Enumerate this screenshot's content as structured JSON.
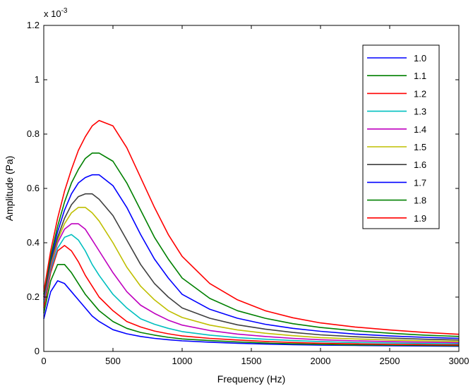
{
  "chart_data": {
    "type": "line",
    "title": "",
    "xlabel": "Frequency (Hz)",
    "ylabel": "Amplitude (Pa)",
    "y_exponent_label": "x 10",
    "y_exponent_power": "-3",
    "xlim": [
      0,
      3000
    ],
    "ylim": [
      0,
      1.2
    ],
    "x_ticks": [
      0,
      500,
      1000,
      1500,
      2000,
      2500,
      3000
    ],
    "x_tick_labels": [
      "0",
      "500",
      "1000",
      "1500",
      "2000",
      "2500",
      "3000"
    ],
    "y_ticks": [
      0,
      0.2,
      0.4,
      0.6,
      0.8,
      1.0,
      1.2
    ],
    "y_tick_labels": [
      "0",
      "0.2",
      "0.4",
      "0.6",
      "0.8",
      "1",
      "1.2"
    ],
    "grid": false,
    "legend_position": "top-right",
    "x": [
      0,
      50,
      100,
      150,
      200,
      250,
      300,
      350,
      400,
      500,
      600,
      700,
      800,
      900,
      1000,
      1200,
      1400,
      1600,
      1800,
      2000,
      2250,
      2500,
      2750,
      3000
    ],
    "series": [
      {
        "name": "1.0",
        "color": "#0000ff",
        "values": [
          0.12,
          0.22,
          0.26,
          0.25,
          0.22,
          0.19,
          0.16,
          0.13,
          0.11,
          0.08,
          0.065,
          0.055,
          0.048,
          0.043,
          0.039,
          0.034,
          0.03,
          0.027,
          0.025,
          0.023,
          0.022,
          0.021,
          0.02,
          0.019
        ]
      },
      {
        "name": "1.1",
        "color": "#008000",
        "values": [
          0.14,
          0.26,
          0.32,
          0.32,
          0.29,
          0.25,
          0.21,
          0.18,
          0.15,
          0.11,
          0.085,
          0.07,
          0.06,
          0.052,
          0.046,
          0.04,
          0.035,
          0.031,
          0.028,
          0.026,
          0.024,
          0.023,
          0.022,
          0.021
        ]
      },
      {
        "name": "1.2",
        "color": "#ff0000",
        "values": [
          0.16,
          0.29,
          0.37,
          0.39,
          0.37,
          0.33,
          0.28,
          0.24,
          0.2,
          0.15,
          0.11,
          0.09,
          0.075,
          0.065,
          0.057,
          0.048,
          0.042,
          0.037,
          0.033,
          0.03,
          0.028,
          0.026,
          0.025,
          0.024
        ]
      },
      {
        "name": "1.3",
        "color": "#00bfbf",
        "values": [
          0.18,
          0.3,
          0.38,
          0.42,
          0.43,
          0.41,
          0.37,
          0.32,
          0.28,
          0.21,
          0.16,
          0.12,
          0.1,
          0.085,
          0.073,
          0.06,
          0.051,
          0.045,
          0.04,
          0.036,
          0.033,
          0.031,
          0.029,
          0.028
        ]
      },
      {
        "name": "1.4",
        "color": "#bf00bf",
        "values": [
          0.19,
          0.31,
          0.4,
          0.45,
          0.47,
          0.47,
          0.45,
          0.41,
          0.37,
          0.29,
          0.22,
          0.17,
          0.14,
          0.115,
          0.097,
          0.077,
          0.064,
          0.055,
          0.048,
          0.043,
          0.039,
          0.036,
          0.034,
          0.032
        ]
      },
      {
        "name": "1.5",
        "color": "#bfbf00",
        "values": [
          0.2,
          0.32,
          0.41,
          0.47,
          0.51,
          0.53,
          0.53,
          0.51,
          0.48,
          0.4,
          0.31,
          0.24,
          0.19,
          0.15,
          0.125,
          0.097,
          0.079,
          0.067,
          0.058,
          0.051,
          0.046,
          0.042,
          0.039,
          0.037
        ]
      },
      {
        "name": "1.6",
        "color": "#3f3f3f",
        "values": [
          0.2,
          0.33,
          0.42,
          0.49,
          0.54,
          0.57,
          0.58,
          0.58,
          0.56,
          0.5,
          0.41,
          0.32,
          0.25,
          0.2,
          0.16,
          0.122,
          0.098,
          0.082,
          0.07,
          0.061,
          0.054,
          0.049,
          0.045,
          0.042
        ]
      },
      {
        "name": "1.7",
        "color": "#0000ff",
        "values": [
          0.21,
          0.34,
          0.44,
          0.52,
          0.58,
          0.62,
          0.64,
          0.65,
          0.65,
          0.61,
          0.53,
          0.43,
          0.34,
          0.27,
          0.21,
          0.155,
          0.122,
          0.1,
          0.085,
          0.074,
          0.064,
          0.057,
          0.052,
          0.048
        ]
      },
      {
        "name": "1.8",
        "color": "#008000",
        "values": [
          0.21,
          0.35,
          0.46,
          0.55,
          0.62,
          0.67,
          0.71,
          0.73,
          0.73,
          0.7,
          0.62,
          0.52,
          0.42,
          0.34,
          0.27,
          0.195,
          0.15,
          0.122,
          0.102,
          0.088,
          0.076,
          0.067,
          0.06,
          0.055
        ]
      },
      {
        "name": "1.9",
        "color": "#ff0000",
        "values": [
          0.22,
          0.37,
          0.49,
          0.59,
          0.67,
          0.74,
          0.79,
          0.83,
          0.85,
          0.83,
          0.75,
          0.64,
          0.53,
          0.43,
          0.35,
          0.25,
          0.19,
          0.15,
          0.124,
          0.105,
          0.09,
          0.079,
          0.07,
          0.063
        ]
      }
    ]
  }
}
